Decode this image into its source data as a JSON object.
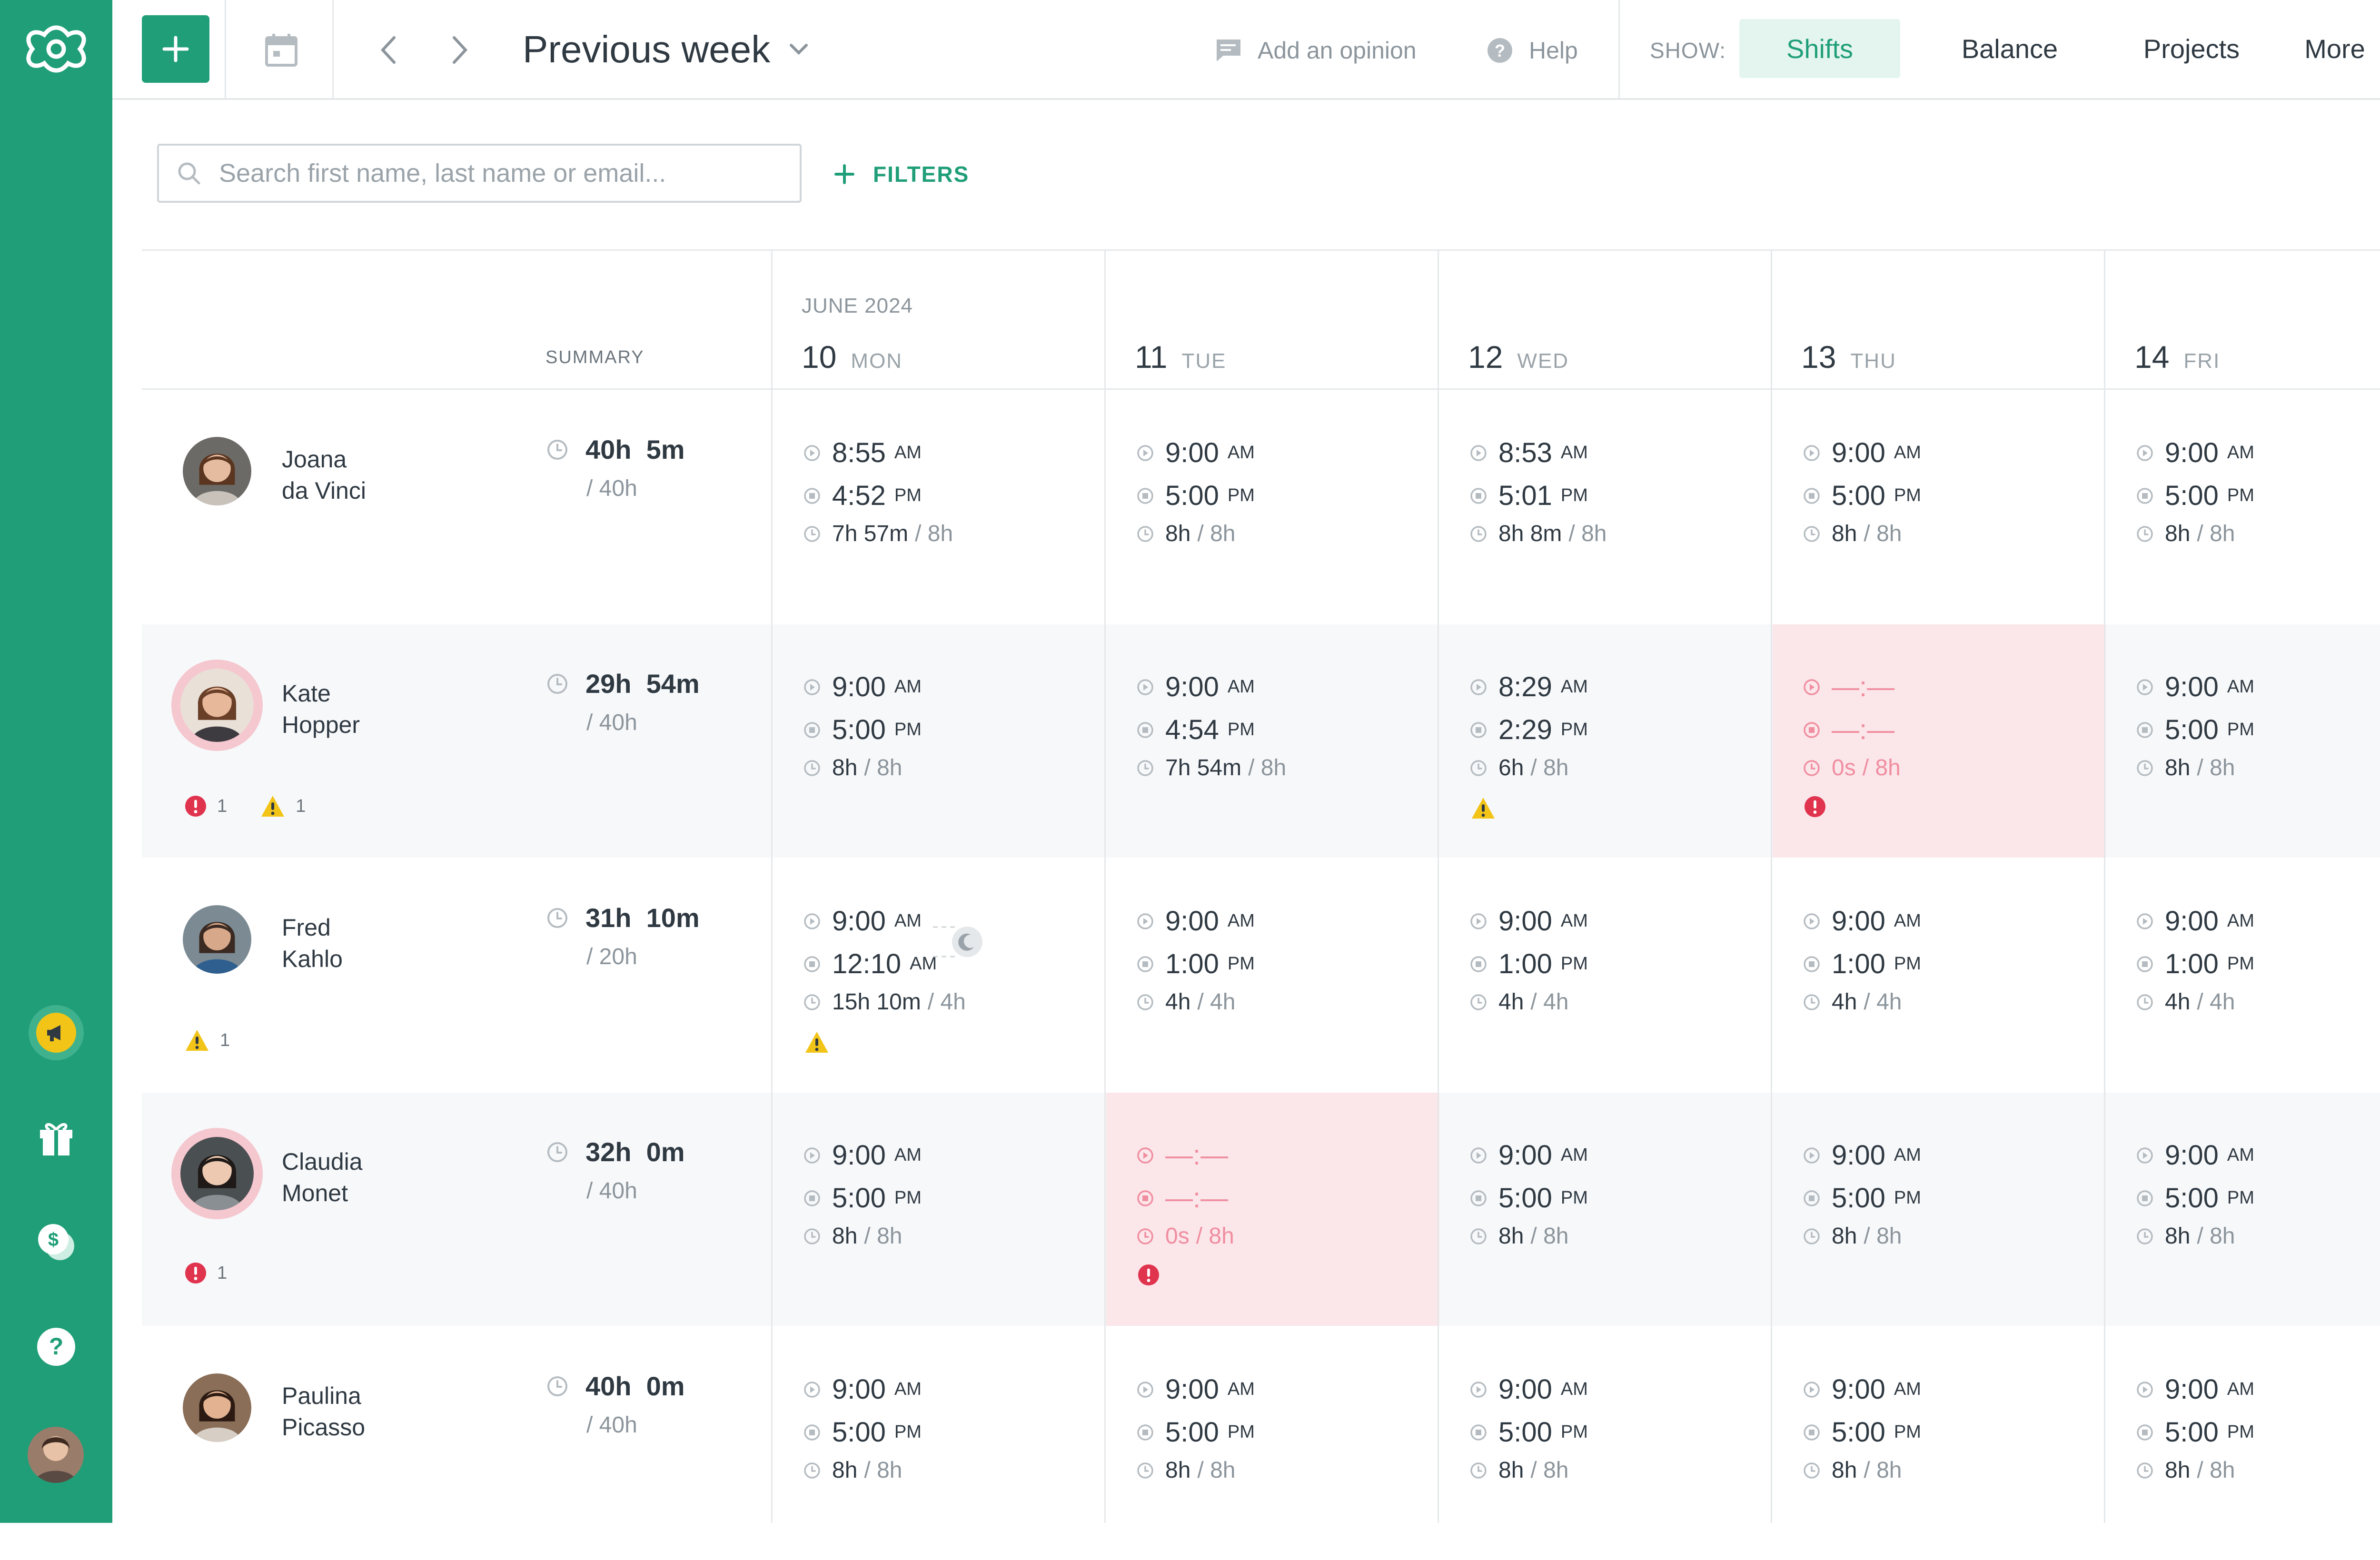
{
  "topbar": {
    "period_label": "Previous week",
    "add_opinion": "Add an opinion",
    "help": "Help",
    "show_label": "SHOW:",
    "tabs": {
      "shifts": "Shifts",
      "balance": "Balance",
      "projects": "Projects",
      "more": "More"
    },
    "active_tab": "Shifts"
  },
  "search": {
    "placeholder": "Search first name, last name or email...",
    "value": ""
  },
  "filters_label": "FILTERS",
  "grid": {
    "summary_header": "SUMMARY",
    "month": "JUNE 2024",
    "days": [
      {
        "num": "10",
        "dow": "MON"
      },
      {
        "num": "11",
        "dow": "TUE"
      },
      {
        "num": "12",
        "dow": "WED"
      },
      {
        "num": "13",
        "dow": "THU"
      },
      {
        "num": "14",
        "dow": "FRI"
      }
    ]
  },
  "people": [
    {
      "first": "Joana",
      "last": "da Vinci",
      "sum_h": "40h",
      "sum_m": "5m",
      "target": "/ 40h",
      "alerts": [],
      "days": [
        {
          "start": "8:55",
          "start_ap": "AM",
          "end": "4:52",
          "end_ap": "PM",
          "dur": "7h 57m",
          "exp": "/ 8h"
        },
        {
          "start": "9:00",
          "start_ap": "AM",
          "end": "5:00",
          "end_ap": "PM",
          "dur": "8h",
          "exp": "/ 8h"
        },
        {
          "start": "8:53",
          "start_ap": "AM",
          "end": "5:01",
          "end_ap": "PM",
          "dur": "8h 8m",
          "exp": "/ 8h"
        },
        {
          "start": "9:00",
          "start_ap": "AM",
          "end": "5:00",
          "end_ap": "PM",
          "dur": "8h",
          "exp": "/ 8h"
        },
        {
          "start": "9:00",
          "start_ap": "AM",
          "end": "5:00",
          "end_ap": "PM",
          "dur": "8h",
          "exp": "/ 8h"
        }
      ]
    },
    {
      "first": "Kate",
      "last": "Hopper",
      "sum_h": "29h",
      "sum_m": "54m",
      "target": "/ 40h",
      "alerts": [
        {
          "type": "error",
          "count": "1"
        },
        {
          "type": "warning",
          "count": "1"
        }
      ],
      "days": [
        {
          "start": "9:00",
          "start_ap": "AM",
          "end": "5:00",
          "end_ap": "PM",
          "dur": "8h",
          "exp": "/ 8h"
        },
        {
          "start": "9:00",
          "start_ap": "AM",
          "end": "4:54",
          "end_ap": "PM",
          "dur": "7h 54m",
          "exp": "/ 8h"
        },
        {
          "start": "8:29",
          "start_ap": "AM",
          "end": "2:29",
          "end_ap": "PM",
          "dur": "6h",
          "exp": "/ 8h",
          "flag": "warning"
        },
        {
          "start": "—:—",
          "start_ap": "",
          "end": "—:—",
          "end_ap": "",
          "dur": "0s",
          "exp": "/ 8h",
          "flag": "error",
          "missing": true
        },
        {
          "start": "9:00",
          "start_ap": "AM",
          "end": "5:00",
          "end_ap": "PM",
          "dur": "8h",
          "exp": "/ 8h"
        }
      ]
    },
    {
      "first": "Fred",
      "last": "Kahlo",
      "sum_h": "31h",
      "sum_m": "10m",
      "target": "/ 20h",
      "alerts": [
        {
          "type": "warning",
          "count": "1"
        }
      ],
      "days": [
        {
          "start": "9:00",
          "start_ap": "AM",
          "end": "12:10",
          "end_ap": "AM",
          "dur": "15h 10m",
          "exp": "/ 4h",
          "flag": "warning",
          "overnight": true
        },
        {
          "start": "9:00",
          "start_ap": "AM",
          "end": "1:00",
          "end_ap": "PM",
          "dur": "4h",
          "exp": "/ 4h"
        },
        {
          "start": "9:00",
          "start_ap": "AM",
          "end": "1:00",
          "end_ap": "PM",
          "dur": "4h",
          "exp": "/ 4h"
        },
        {
          "start": "9:00",
          "start_ap": "AM",
          "end": "1:00",
          "end_ap": "PM",
          "dur": "4h",
          "exp": "/ 4h"
        },
        {
          "start": "9:00",
          "start_ap": "AM",
          "end": "1:00",
          "end_ap": "PM",
          "dur": "4h",
          "exp": "/ 4h"
        }
      ]
    },
    {
      "first": "Claudia",
      "last": "Monet",
      "sum_h": "32h",
      "sum_m": "0m",
      "target": "/ 40h",
      "alerts": [
        {
          "type": "error",
          "count": "1"
        }
      ],
      "days": [
        {
          "start": "9:00",
          "start_ap": "AM",
          "end": "5:00",
          "end_ap": "PM",
          "dur": "8h",
          "exp": "/ 8h"
        },
        {
          "start": "—:—",
          "start_ap": "",
          "end": "—:—",
          "end_ap": "",
          "dur": "0s",
          "exp": "/ 8h",
          "flag": "error",
          "missing": true
        },
        {
          "start": "9:00",
          "start_ap": "AM",
          "end": "5:00",
          "end_ap": "PM",
          "dur": "8h",
          "exp": "/ 8h"
        },
        {
          "start": "9:00",
          "start_ap": "AM",
          "end": "5:00",
          "end_ap": "PM",
          "dur": "8h",
          "exp": "/ 8h"
        },
        {
          "start": "9:00",
          "start_ap": "AM",
          "end": "5:00",
          "end_ap": "PM",
          "dur": "8h",
          "exp": "/ 8h"
        }
      ]
    },
    {
      "first": "Paulina",
      "last": "Picasso",
      "sum_h": "40h",
      "sum_m": "0m",
      "target": "/ 40h",
      "alerts": [],
      "days": [
        {
          "start": "9:00",
          "start_ap": "AM",
          "end": "5:00",
          "end_ap": "PM",
          "dur": "8h",
          "exp": "/ 8h"
        },
        {
          "start": "9:00",
          "start_ap": "AM",
          "end": "5:00",
          "end_ap": "PM",
          "dur": "8h",
          "exp": "/ 8h"
        },
        {
          "start": "9:00",
          "start_ap": "AM",
          "end": "5:00",
          "end_ap": "PM",
          "dur": "8h",
          "exp": "/ 8h"
        },
        {
          "start": "9:00",
          "start_ap": "AM",
          "end": "5:00",
          "end_ap": "PM",
          "dur": "8h",
          "exp": "/ 8h"
        },
        {
          "start": "9:00",
          "start_ap": "AM",
          "end": "5:00",
          "end_ap": "PM",
          "dur": "8h",
          "exp": "/ 8h"
        }
      ]
    }
  ],
  "colors": {
    "brand": "#1f9e78",
    "error": "#e0334d",
    "warning": "#f2c417",
    "error_bg": "#fbe6ea",
    "active_tab_bg": "#e3f5ee"
  },
  "icons": {
    "rail": [
      "app-logo-icon",
      "megaphone-icon",
      "gift-icon",
      "coins-icon",
      "help-circle-icon",
      "user-avatar"
    ],
    "topbar": [
      "plus-icon",
      "calendar-icon",
      "chevron-left-icon",
      "chevron-right-icon",
      "chevron-down-icon",
      "comment-icon",
      "help-icon"
    ],
    "cells": [
      "clock-in-icon",
      "clock-out-icon",
      "duration-icon",
      "warning-icon",
      "error-icon",
      "moon-icon"
    ]
  }
}
